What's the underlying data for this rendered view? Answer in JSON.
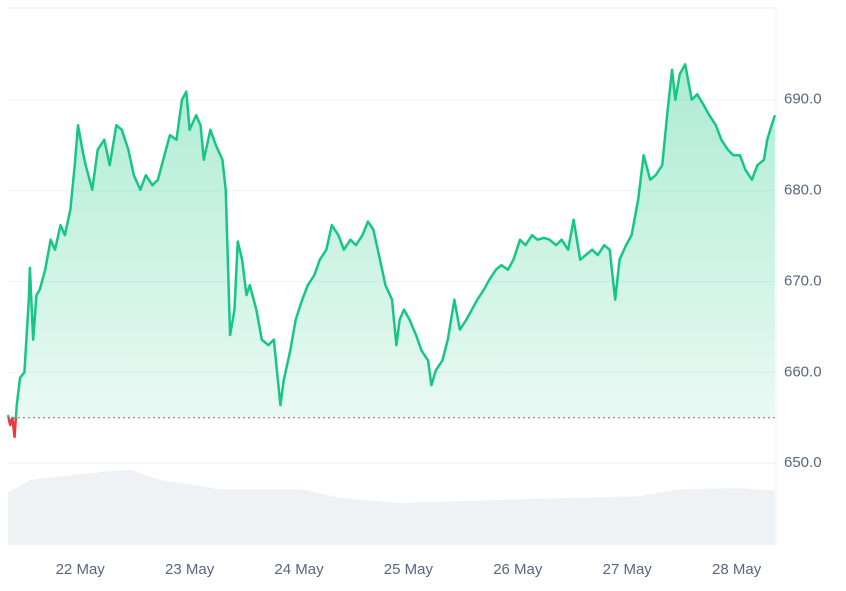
{
  "chart_data": {
    "type": "line",
    "series": [
      {
        "name": "price",
        "color": "#16c784",
        "below_color": "#ea3943",
        "x": [
          -0.66,
          -0.64,
          -0.62,
          -0.6,
          -0.58,
          -0.55,
          -0.51,
          -0.47,
          -0.46,
          -0.43,
          -0.4,
          -0.37,
          -0.32,
          -0.27,
          -0.23,
          -0.18,
          -0.14,
          -0.09,
          -0.05,
          -0.02,
          0.02,
          0.05,
          0.11,
          0.16,
          0.22,
          0.27,
          0.33,
          0.38,
          0.44,
          0.49,
          0.55,
          0.6,
          0.66,
          0.71,
          0.77,
          0.82,
          0.88,
          0.93,
          0.97,
          1.0,
          1.06,
          1.1,
          1.13,
          1.19,
          1.24,
          1.3,
          1.33,
          1.37,
          1.41,
          1.44,
          1.48,
          1.52,
          1.55,
          1.61,
          1.66,
          1.72,
          1.77,
          1.83,
          1.86,
          1.92,
          1.97,
          2.03,
          2.08,
          2.14,
          2.19,
          2.25,
          2.3,
          2.36,
          2.41,
          2.47,
          2.52,
          2.58,
          2.63,
          2.68,
          2.74,
          2.79,
          2.85,
          2.89,
          2.92,
          2.96,
          3.01,
          3.07,
          3.12,
          3.18,
          3.21,
          3.25,
          3.31,
          3.36,
          3.42,
          3.47,
          3.53,
          3.58,
          3.63,
          3.69,
          3.74,
          3.8,
          3.85,
          3.91,
          3.96,
          4.02,
          4.07,
          4.13,
          4.18,
          4.24,
          4.29,
          4.35,
          4.4,
          4.46,
          4.51,
          4.57,
          4.62,
          4.68,
          4.73,
          4.79,
          4.84,
          4.89,
          4.93,
          4.99,
          5.04,
          5.1,
          5.15,
          5.21,
          5.26,
          5.32,
          5.37,
          5.41,
          5.44,
          5.48,
          5.53,
          5.59,
          5.64,
          5.7,
          5.75,
          5.81,
          5.86,
          5.92,
          5.97,
          6.03,
          6.08,
          6.14,
          6.19,
          6.25,
          6.28,
          6.32,
          6.35
        ],
        "values": [
          655.3,
          654.2,
          655.0,
          652.9,
          656.4,
          659.4,
          660.0,
          668.0,
          671.5,
          663.6,
          668.5,
          669.1,
          671.3,
          674.6,
          673.5,
          676.2,
          675.1,
          677.9,
          682.8,
          687.2,
          684.5,
          682.8,
          680.1,
          684.5,
          685.6,
          682.8,
          687.2,
          686.7,
          684.5,
          681.7,
          680.1,
          681.7,
          680.6,
          681.2,
          683.9,
          686.1,
          685.6,
          690.0,
          690.9,
          686.7,
          688.3,
          687.2,
          683.4,
          686.7,
          685.0,
          683.4,
          680.1,
          664.1,
          666.9,
          674.4,
          672.4,
          668.5,
          669.6,
          666.9,
          663.6,
          663.0,
          663.6,
          656.4,
          659.1,
          662.4,
          665.8,
          668.0,
          669.6,
          670.7,
          672.4,
          673.5,
          676.2,
          675.1,
          673.5,
          674.6,
          674.0,
          675.1,
          676.6,
          675.7,
          672.4,
          669.6,
          668.0,
          663.0,
          665.8,
          666.9,
          665.8,
          664.1,
          662.4,
          661.3,
          658.6,
          660.2,
          661.3,
          663.6,
          668.0,
          664.7,
          665.8,
          666.9,
          668.0,
          669.1,
          670.2,
          671.3,
          671.8,
          671.3,
          672.4,
          674.6,
          674.0,
          675.1,
          674.6,
          674.8,
          674.6,
          674.0,
          674.6,
          673.5,
          676.8,
          672.4,
          672.9,
          673.5,
          672.9,
          674.0,
          673.5,
          668.0,
          672.4,
          674.0,
          675.1,
          679.0,
          683.9,
          681.2,
          681.7,
          682.8,
          688.9,
          693.3,
          690.0,
          692.8,
          693.9,
          690.0,
          690.6,
          689.4,
          688.3,
          687.2,
          685.6,
          684.5,
          683.9,
          683.9,
          682.3,
          681.2,
          682.8,
          683.4,
          685.6,
          687.2,
          688.3
        ]
      }
    ],
    "baseline": 655.0,
    "volume": {
      "color": "#eff2f5",
      "x": [
        -0.66,
        -0.46,
        0.18,
        0.46,
        0.73,
        1.28,
        2.01,
        2.37,
        2.92,
        3.84,
        5.11,
        5.48,
        6.03,
        6.35
      ],
      "values": [
        9.7,
        12.1,
        13.6,
        14.0,
        12.1,
        10.4,
        10.4,
        8.8,
        7.8,
        8.4,
        9.1,
        10.4,
        10.6,
        10.1
      ],
      "y2lim": [
        0,
        100
      ]
    },
    "xlim": [
      -0.66,
      6.36
    ],
    "xticks": [
      {
        "value": 0,
        "label": "22 May"
      },
      {
        "value": 1,
        "label": "23 May"
      },
      {
        "value": 2,
        "label": "24 May"
      },
      {
        "value": 3,
        "label": "25 May"
      },
      {
        "value": 4,
        "label": "26 May"
      },
      {
        "value": 5,
        "label": "27 May"
      },
      {
        "value": 6,
        "label": "28 May"
      }
    ],
    "ylim": [
      641,
      700.1
    ],
    "yticks": [
      {
        "value": 650,
        "label": "650.0"
      },
      {
        "value": 660,
        "label": "660.0"
      },
      {
        "value": 670,
        "label": "670.0"
      },
      {
        "value": 680,
        "label": "680.0"
      },
      {
        "value": 690,
        "label": "690.0"
      }
    ],
    "grid": true
  }
}
